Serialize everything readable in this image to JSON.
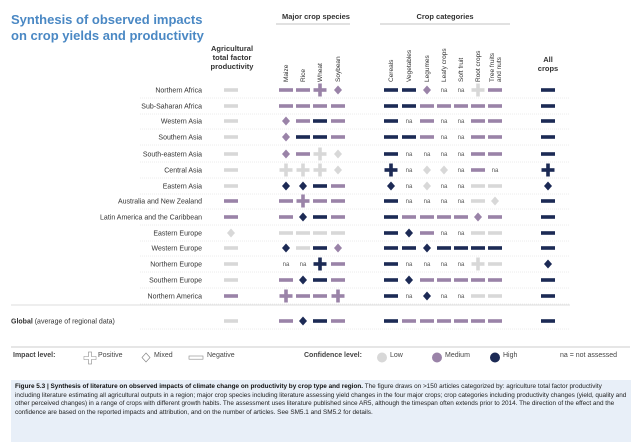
{
  "title": "Synthesis of observed impacts\non crop yields and productivity",
  "headers": {
    "agri_tfp": "Agricultural\ntotal factor\nproductivity",
    "major_crops": "Major crop species",
    "crop_categories": "Crop categories",
    "all_crops": "All\ncrops"
  },
  "chart_data": {
    "type": "table",
    "columns": [
      "Agricultural total factor productivity",
      "Maize",
      "Rice",
      "Wheat",
      "Soybean",
      "Cereals",
      "Vegetables",
      "Legumes",
      "Leafy crops",
      "Soft fruit",
      "Root crops",
      "Tree fruits and nuts",
      "All crops"
    ],
    "column_labels_rotated": [
      "Maize",
      "Rice",
      "Wheat",
      "Soybean",
      "Cereals",
      "Vegetables",
      "Legumes",
      "Leafy crops",
      "Soft fruit",
      "Root crops",
      "Tree fruits and nuts"
    ],
    "legend_codes": {
      "N": "Negative",
      "M": "Mixed",
      "P": "Positive",
      "na": "not assessed",
      "L": "Low",
      "Me": "Medium",
      "H": "High"
    },
    "rows": [
      {
        "region": "Northern Africa",
        "cells": [
          "N-L",
          "N-Me",
          "N-Me",
          "P-Me",
          "M-Me",
          "N-H",
          "N-H",
          "M-Me",
          "na",
          "na",
          "P-L",
          "N-Me",
          "N-H"
        ]
      },
      {
        "region": "Sub-Saharan Africa",
        "cells": [
          "N-L",
          "N-Me",
          "N-Me",
          "N-Me",
          "N-Me",
          "N-H",
          "N-H",
          "N-Me",
          "N-Me",
          "N-Me",
          "N-Me",
          "N-Me",
          "N-H"
        ]
      },
      {
        "region": "Western Asia",
        "cells": [
          "N-L",
          "M-Me",
          "N-Me",
          "N-H",
          "N-Me",
          "N-H",
          "na",
          "N-Me",
          "na",
          "na",
          "N-Me",
          "N-Me",
          "N-H"
        ]
      },
      {
        "region": "Southern Asia",
        "cells": [
          "N-L",
          "M-Me",
          "N-H",
          "N-H",
          "N-Me",
          "N-H",
          "N-H",
          "N-Me",
          "na",
          "na",
          "N-Me",
          "N-Me",
          "N-H"
        ]
      },
      {
        "region": "South-eastern Asia",
        "cells": [
          "N-L",
          "M-Me",
          "N-Me",
          "P-L",
          "M-L",
          "N-H",
          "na",
          "na",
          "na",
          "na",
          "N-Me",
          "N-Me",
          "N-H"
        ]
      },
      {
        "region": "Central Asia",
        "cells": [
          "N-L",
          "P-L",
          "P-L",
          "P-L",
          "M-L",
          "P-H",
          "na",
          "M-L",
          "M-L",
          "na",
          "N-Me",
          "na",
          "P-H"
        ]
      },
      {
        "region": "Eastern Asia",
        "cells": [
          "N-L",
          "M-H",
          "M-H",
          "N-H",
          "N-Me",
          "M-H",
          "na",
          "M-L",
          "na",
          "na",
          "N-L",
          "N-L",
          "M-H"
        ]
      },
      {
        "region": "Australia and New Zealand",
        "cells": [
          "N-Me",
          "N-Me",
          "P-Me",
          "N-Me",
          "N-Me",
          "N-H",
          "na",
          "na",
          "na",
          "na",
          "N-L",
          "M-L",
          "N-H"
        ]
      },
      {
        "region": "Latin America and the Caribbean",
        "cells": [
          "N-Me",
          "N-Me",
          "M-H",
          "N-H",
          "N-Me",
          "N-H",
          "N-Me",
          "N-Me",
          "N-Me",
          "N-Me",
          "M-Me",
          "N-Me",
          "N-H"
        ]
      },
      {
        "region": "Eastern Europe",
        "cells": [
          "M-L",
          "N-L",
          "N-L",
          "N-L",
          "N-L",
          "N-H",
          "M-H",
          "N-Me",
          "na",
          "na",
          "N-L",
          "N-L",
          "N-H"
        ]
      },
      {
        "region": "Western Europe",
        "cells": [
          "N-L",
          "M-H",
          "N-L",
          "N-H",
          "M-Me",
          "N-H",
          "N-H",
          "M-H",
          "N-H",
          "N-H",
          "N-H",
          "N-H",
          "N-H"
        ]
      },
      {
        "region": "Northern Europe",
        "cells": [
          "N-L",
          "na",
          "na",
          "P-H",
          "N-Me",
          "N-H",
          "na",
          "na",
          "na",
          "na",
          "P-L",
          "N-L",
          "M-H"
        ]
      },
      {
        "region": "Southern Europe",
        "cells": [
          "N-L",
          "N-Me",
          "M-H",
          "N-H",
          "N-Me",
          "N-H",
          "M-H",
          "N-Me",
          "N-Me",
          "N-Me",
          "N-Me",
          "N-Me",
          "N-H"
        ]
      },
      {
        "region": "Northern America",
        "cells": [
          "N-Me",
          "P-Me",
          "N-Me",
          "N-Me",
          "P-Me",
          "N-H",
          "na",
          "M-H",
          "na",
          "na",
          "N-L",
          "N-L",
          "N-H"
        ]
      },
      {
        "region": "Global (average of regional data)",
        "cells": [
          "N-L",
          "N-Me",
          "M-H",
          "N-H",
          "N-Me",
          "N-H",
          "N-Me",
          "N-Me",
          "N-Me",
          "N-Me",
          "N-Me",
          "N-Me",
          "N-H"
        ]
      }
    ]
  },
  "legend": {
    "impact_label": "Impact level:",
    "positive": "Positive",
    "mixed": "Mixed",
    "negative": "Negative",
    "confidence_label": "Confidence level:",
    "low": "Low",
    "medium": "Medium",
    "high": "High",
    "na": "na = not assessed"
  },
  "colors": {
    "low": "#d8d8d8",
    "medium": "#9a83a8",
    "high": "#1c2a55",
    "title": "#4a88c4"
  },
  "caption": {
    "bold": "Figure 5.3 | Synthesis of literature on observed impacts of climate change on productivity by crop type and region.",
    "text": " The figure draws on >150 articles categorized by: agriculture total factor productivity including literature estimating all agricultural outputs in a region; major crop species including literature assessing yield changes in the four major crops; crop categories including productivity changes (yield, quality and other perceived changes) in a range of crops with different growth habits. The assessment uses literature published since AR5, although the timespan often extends prior to 2014. The direction of the effect and the confidence are based on the reported impacts and attribution, and on the number of articles. See SM5.1 and SM5.2 for details."
  }
}
